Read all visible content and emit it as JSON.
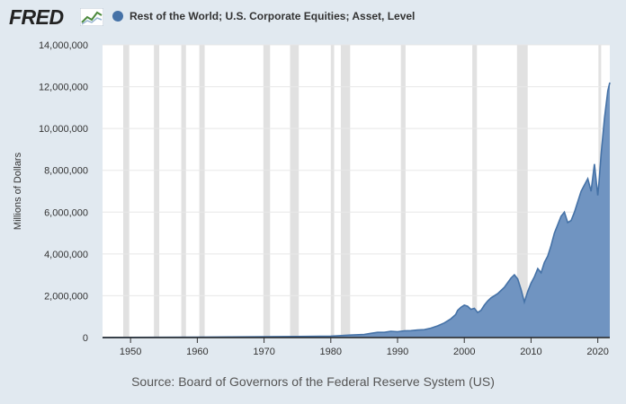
{
  "header": {
    "logo_text": "FRED",
    "series_label": "Rest of the World; U.S. Corporate Equities; Asset, Level",
    "series_color": "#4572a7"
  },
  "source": "Source: Board of Governors of the Federal Reserve System (US)",
  "chart_data": {
    "type": "area",
    "title": "Rest of the World; U.S. Corporate Equities; Asset, Level",
    "ylabel": "Millions of Dollars",
    "xlabel": "",
    "ylim": [
      0,
      14000000
    ],
    "xlim": [
      1945.8,
      2021.8
    ],
    "y_ticks": [
      0,
      2000000,
      4000000,
      6000000,
      8000000,
      10000000,
      12000000,
      14000000
    ],
    "y_tick_labels": [
      "0",
      "2,000,000",
      "4,000,000",
      "6,000,000",
      "8,000,000",
      "10,000,000",
      "12,000,000",
      "14,000,000"
    ],
    "x_ticks": [
      1950,
      1960,
      1970,
      1980,
      1990,
      2000,
      2010,
      2020
    ],
    "x_tick_labels": [
      "1950",
      "1960",
      "1970",
      "1980",
      "1990",
      "2000",
      "2010",
      "2020"
    ],
    "recessions": [
      [
        1948.9,
        1949.8
      ],
      [
        1953.5,
        1954.3
      ],
      [
        1957.6,
        1958.3
      ],
      [
        1960.3,
        1961.1
      ],
      [
        1969.9,
        1970.9
      ],
      [
        1973.9,
        1975.2
      ],
      [
        1980.0,
        1980.5
      ],
      [
        1981.5,
        1982.9
      ],
      [
        1990.5,
        1991.2
      ],
      [
        2001.2,
        2001.9
      ],
      [
        2007.9,
        2009.5
      ],
      [
        2020.1,
        2020.3
      ]
    ],
    "series": [
      {
        "name": "Rest of the World; U.S. Corporate Equities; Asset, Level",
        "color": "#4572a7",
        "fill": "#7094c1",
        "x": [
          1945.8,
          1950,
          1955,
          1960,
          1965,
          1970,
          1975,
          1980,
          1983,
          1985,
          1986,
          1987,
          1988,
          1989,
          1990,
          1991,
          1992,
          1993,
          1994,
          1995,
          1996,
          1997,
          1998,
          1998.7,
          1999,
          1999.5,
          2000,
          2000.5,
          2001,
          2001.5,
          2002,
          2002.5,
          2003,
          2003.5,
          2004,
          2005,
          2006,
          2007,
          2007.5,
          2008,
          2008.5,
          2009,
          2009.5,
          2010,
          2010.5,
          2011,
          2011.5,
          2012,
          2012.5,
          2013,
          2013.5,
          2014,
          2014.5,
          2015,
          2015.5,
          2016,
          2016.5,
          2017,
          2017.5,
          2018,
          2018.5,
          2019,
          2019.5,
          2020,
          2020.2,
          2020.5,
          2021,
          2021.5,
          2021.8
        ],
        "values": [
          5000,
          8000,
          12000,
          20000,
          30000,
          40000,
          50000,
          70000,
          120000,
          150000,
          200000,
          250000,
          250000,
          300000,
          280000,
          320000,
          330000,
          360000,
          380000,
          450000,
          560000,
          700000,
          900000,
          1100000,
          1300000,
          1450000,
          1550000,
          1500000,
          1350000,
          1400000,
          1200000,
          1300000,
          1550000,
          1750000,
          1900000,
          2100000,
          2400000,
          2850000,
          3000000,
          2800000,
          2300000,
          1700000,
          2200000,
          2600000,
          2900000,
          3300000,
          3100000,
          3600000,
          3900000,
          4400000,
          5000000,
          5400000,
          5800000,
          6000000,
          5500000,
          5600000,
          6000000,
          6500000,
          7000000,
          7300000,
          7600000,
          7000000,
          8300000,
          6800000,
          7500000,
          8800000,
          10500000,
          11800000,
          12200000
        ]
      }
    ]
  }
}
